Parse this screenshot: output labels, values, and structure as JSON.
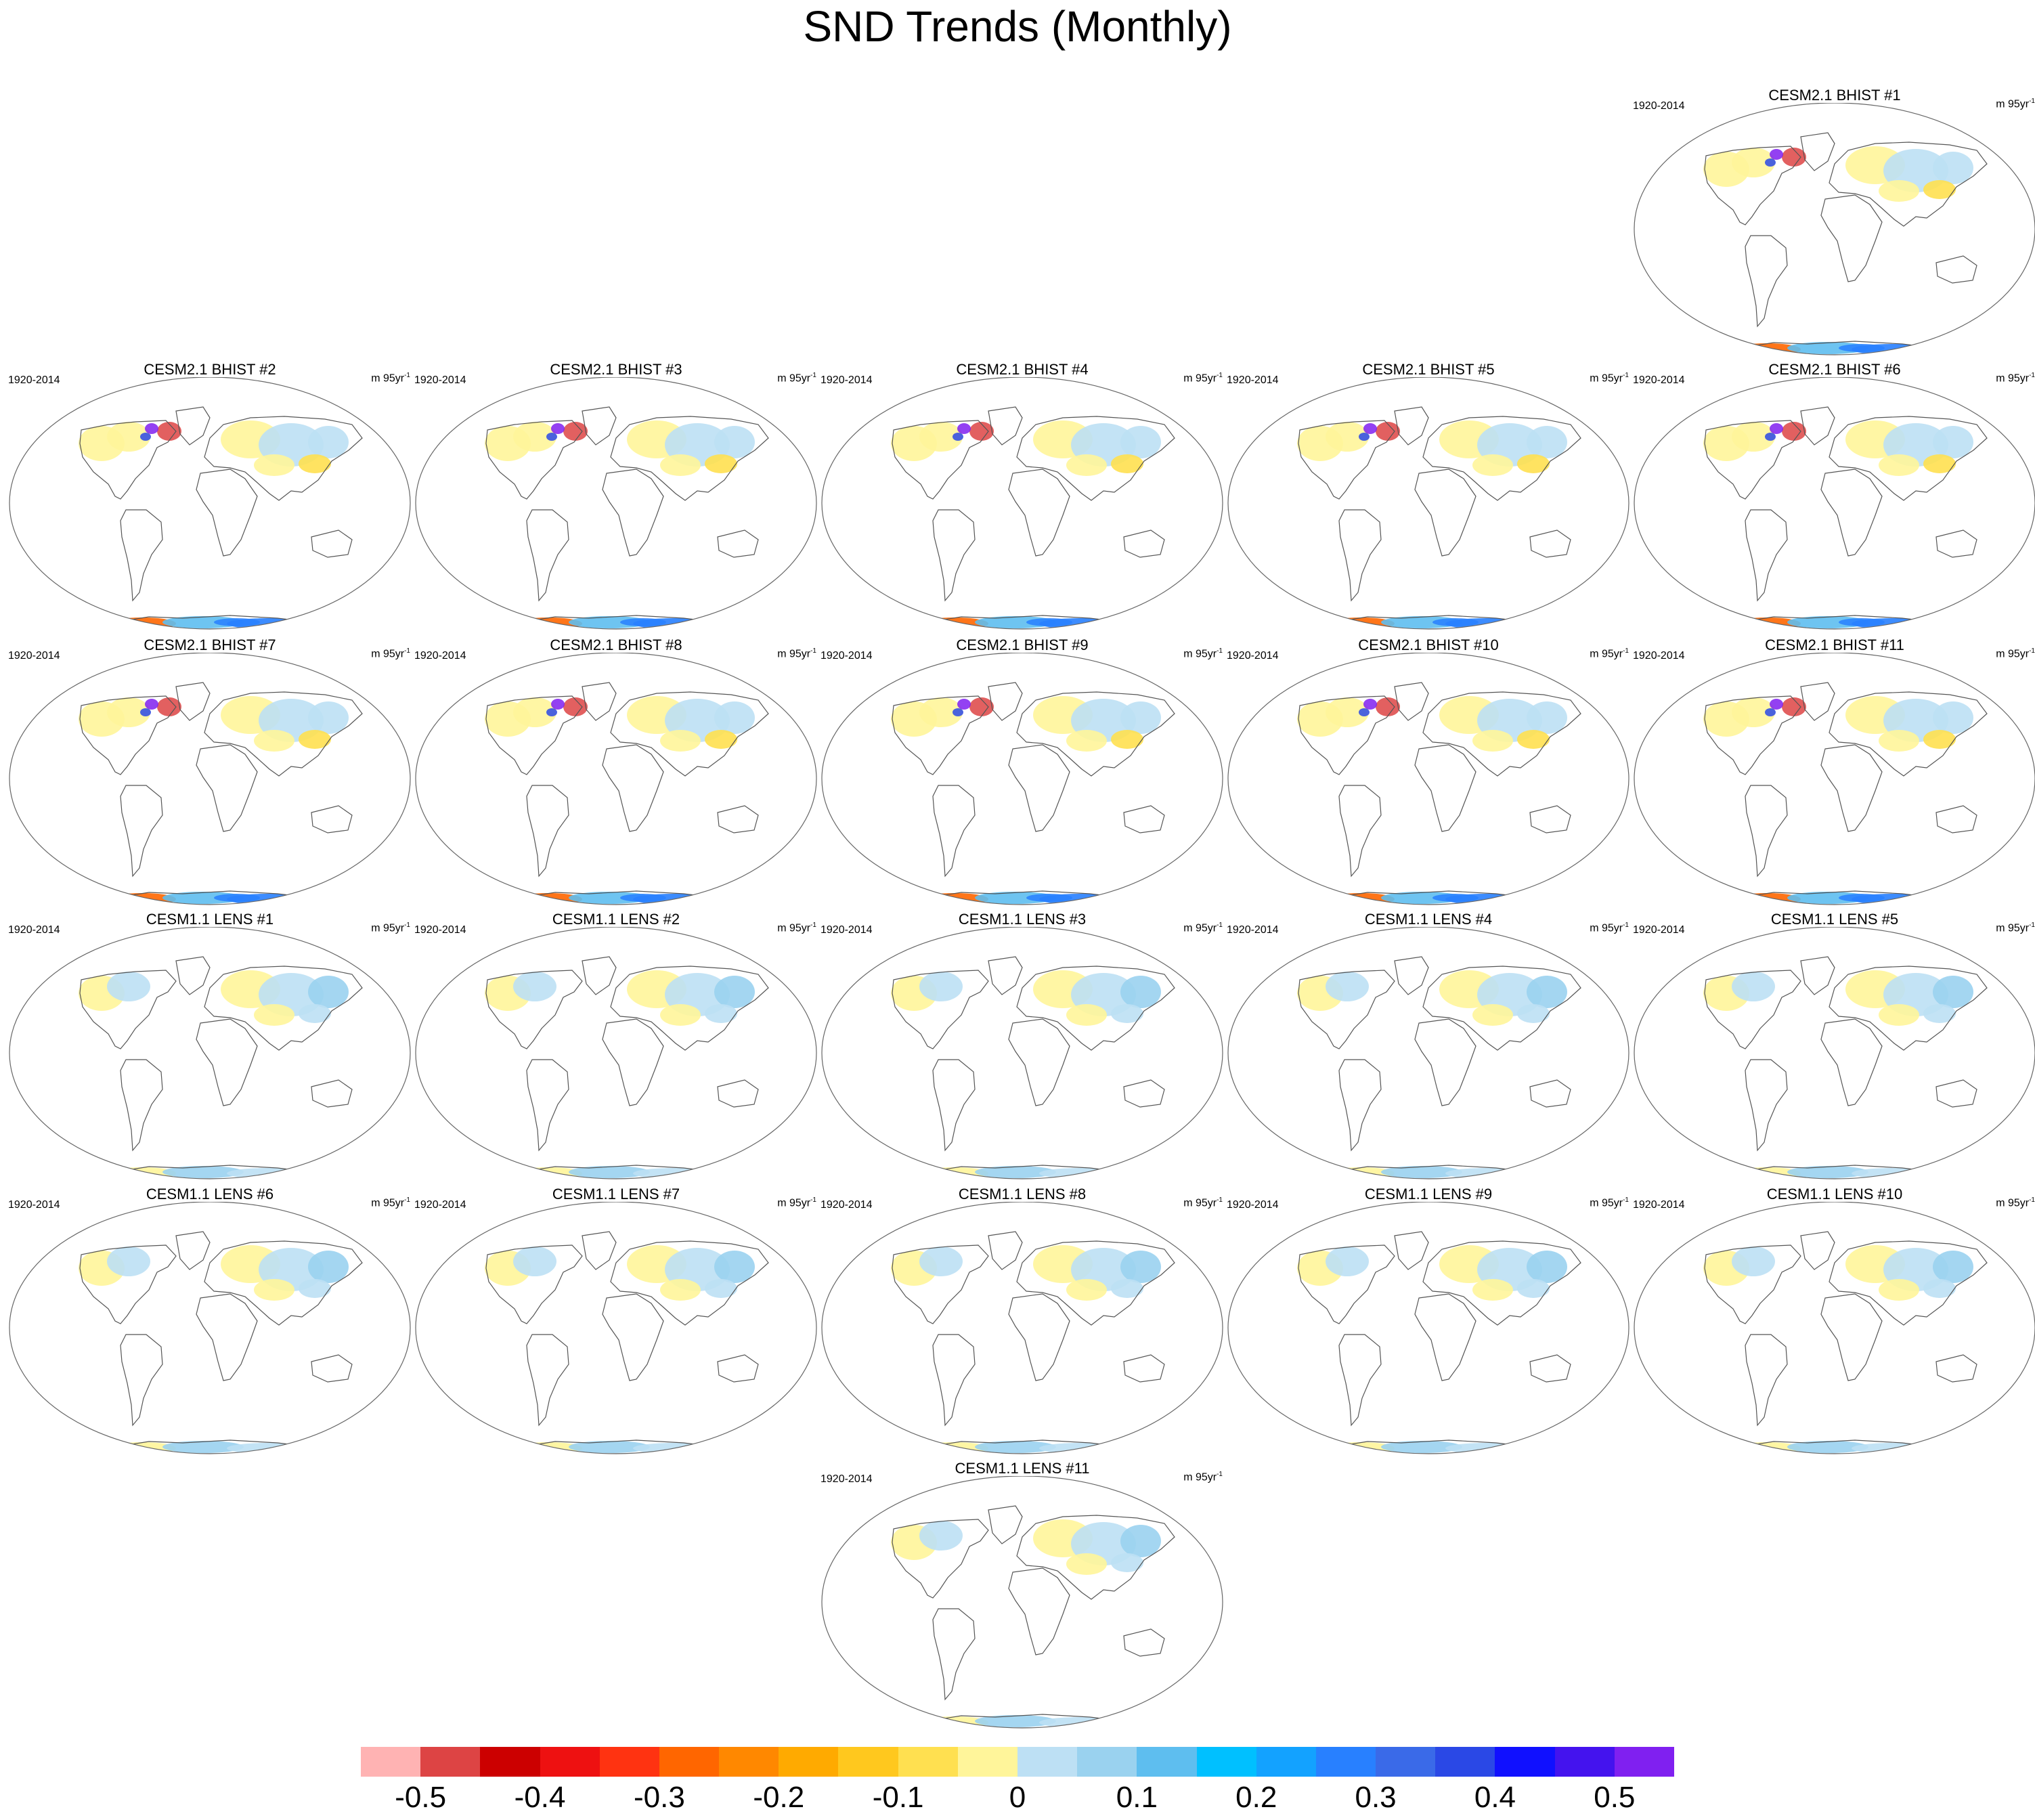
{
  "title": "SND Trends (Monthly)",
  "period_label": "1920-2014",
  "units": {
    "base": "m 95yr",
    "exp": "-1"
  },
  "panels": [
    {
      "title": "CESM2.1 BHIST #1",
      "scheme": "bhist"
    },
    {
      "title": "CESM2.1 BHIST #2",
      "scheme": "bhist"
    },
    {
      "title": "CESM2.1 BHIST #3",
      "scheme": "bhist"
    },
    {
      "title": "CESM2.1 BHIST #4",
      "scheme": "bhist"
    },
    {
      "title": "CESM2.1 BHIST #5",
      "scheme": "bhist"
    },
    {
      "title": "CESM2.1 BHIST #6",
      "scheme": "bhist"
    },
    {
      "title": "CESM2.1 BHIST #7",
      "scheme": "bhist"
    },
    {
      "title": "CESM2.1 BHIST #8",
      "scheme": "bhist"
    },
    {
      "title": "CESM2.1 BHIST #9",
      "scheme": "bhist"
    },
    {
      "title": "CESM2.1 BHIST #10",
      "scheme": "bhist"
    },
    {
      "title": "CESM2.1 BHIST #11",
      "scheme": "bhist"
    },
    {
      "title": "CESM1.1 LENS #1",
      "scheme": "lens"
    },
    {
      "title": "CESM1.1 LENS #2",
      "scheme": "lens"
    },
    {
      "title": "CESM1.1 LENS #3",
      "scheme": "lens"
    },
    {
      "title": "CESM1.1 LENS #4",
      "scheme": "lens"
    },
    {
      "title": "CESM1.1 LENS #5",
      "scheme": "lens"
    },
    {
      "title": "CESM1.1 LENS #6",
      "scheme": "lens"
    },
    {
      "title": "CESM1.1 LENS #7",
      "scheme": "lens"
    },
    {
      "title": "CESM1.1 LENS #8",
      "scheme": "lens"
    },
    {
      "title": "CESM1.1 LENS #9",
      "scheme": "lens"
    },
    {
      "title": "CESM1.1 LENS #10",
      "scheme": "lens"
    },
    {
      "title": "CESM1.1 LENS #11",
      "scheme": "lens"
    }
  ],
  "colorbar": {
    "colors": [
      "#ffb3b3",
      "#dd4444",
      "#cc0000",
      "#ee1111",
      "#ff3311",
      "#ff6600",
      "#ff8800",
      "#ffaa00",
      "#ffc81e",
      "#ffe050",
      "#fff59a",
      "#bde0f4",
      "#9ad2ef",
      "#5ebeef",
      "#00c0ff",
      "#13a2ff",
      "#2880ff",
      "#3a6ae8",
      "#2a48e6",
      "#1010ff",
      "#4413ee",
      "#8020f0"
    ],
    "ticks": [
      {
        "label": "-0.5",
        "index": 1
      },
      {
        "label": "-0.4",
        "index": 3
      },
      {
        "label": "-0.3",
        "index": 5
      },
      {
        "label": "-0.2",
        "index": 7
      },
      {
        "label": "-0.1",
        "index": 9
      },
      {
        "label": "0",
        "index": 11
      },
      {
        "label": "0.1",
        "index": 13
      },
      {
        "label": "0.2",
        "index": 15
      },
      {
        "label": "0.3",
        "index": 17
      },
      {
        "label": "0.4",
        "index": 19
      },
      {
        "label": "0.5",
        "index": 21
      }
    ]
  }
}
